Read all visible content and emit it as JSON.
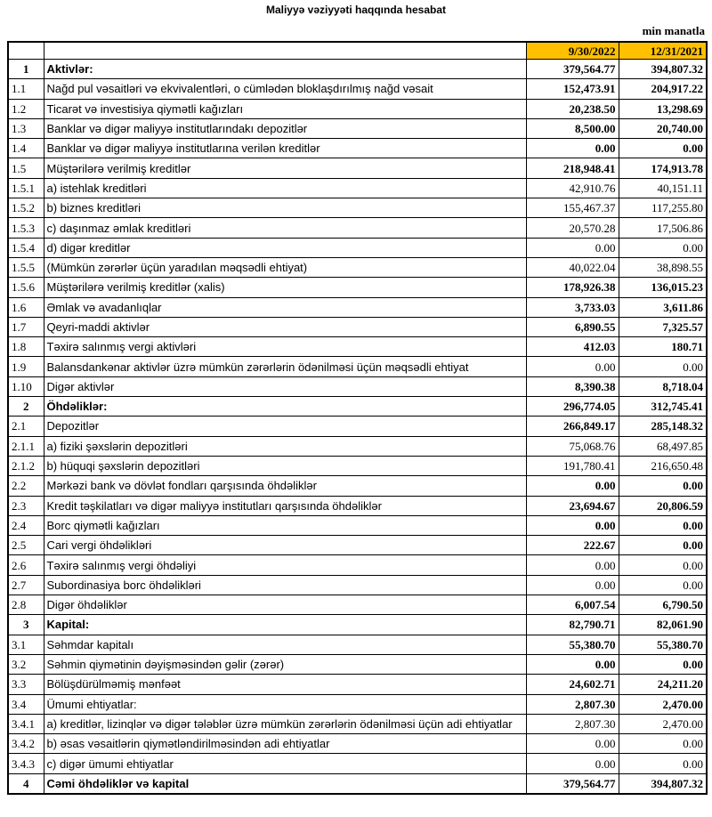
{
  "header": {
    "title": "Maliyyə vəziyyəti haqqında hesabat",
    "unit": "min manatla"
  },
  "table": {
    "columns": [
      "9/30/2022",
      "12/31/2021"
    ],
    "rows": [
      [
        "1",
        "Aktivlər:",
        "379,564.77",
        "394,807.32"
      ],
      [
        "1.1",
        "Nağd pul vəsaitləri və ekvivalentləri, o cümlədən bloklaşdırılmış nağd vəsait",
        "152,473.91",
        "204,917.22"
      ],
      [
        "1.2",
        "Ticarət və investisiya qiymətli kağızları",
        "20,238.50",
        "13,298.69"
      ],
      [
        "1.3",
        "Banklar və digər maliyyə institutlarındakı depozitlər",
        "8,500.00",
        "20,740.00"
      ],
      [
        "1.4",
        "Banklar və digər maliyyə institutlarına verilən kreditlər",
        "0.00",
        "0.00"
      ],
      [
        "1.5",
        "Müştərilərə verilmiş kreditlər",
        "218,948.41",
        "174,913.78"
      ],
      [
        "1.5.1",
        "a) istehlak kreditləri",
        "42,910.76",
        "40,151.11"
      ],
      [
        "1.5.2",
        "b) biznes kreditləri",
        "155,467.37",
        "117,255.80"
      ],
      [
        "1.5.3",
        "c) daşınmaz əmlak kreditləri",
        "20,570.28",
        "17,506.86"
      ],
      [
        "1.5.4",
        "d) digər kreditlər",
        "0.00",
        "0.00"
      ],
      [
        "1.5.5",
        "(Mümkün zərərlər üçün yaradılan məqsədli ehtiyat)",
        "40,022.04",
        "38,898.55"
      ],
      [
        "1.5.6",
        "Müştərilərə verilmiş kreditlər (xalis)",
        "178,926.38",
        "136,015.23"
      ],
      [
        "1.6",
        "Əmlak və avadanlıqlar",
        "3,733.03",
        "3,611.86"
      ],
      [
        "1.7",
        "Qeyri-maddi aktivlər",
        "6,890.55",
        "7,325.57"
      ],
      [
        "1.8",
        "Təxirə salınmış vergi aktivləri",
        "412.03",
        "180.71"
      ],
      [
        "1.9",
        "Balansdankənar aktivlər üzrə mümkün zərərlərin ödənilməsi üçün məqsədli ehtiyat",
        "0.00",
        "0.00"
      ],
      [
        "1.10",
        "Digər aktivlər",
        "8,390.38",
        "8,718.04"
      ],
      [
        "2",
        "Öhdəliklər:",
        "296,774.05",
        "312,745.41"
      ],
      [
        "2.1",
        "Depozitlər",
        "266,849.17",
        "285,148.32"
      ],
      [
        "2.1.1",
        "a) fiziki şəxslərin depozitləri",
        "75,068.76",
        "68,497.85"
      ],
      [
        "2.1.2",
        "b) hüquqi şəxslərin depozitləri",
        "191,780.41",
        "216,650.48"
      ],
      [
        "2.2",
        "Mərkəzi bank və dövlət fondları qarşısında öhdəliklər",
        "0.00",
        "0.00"
      ],
      [
        "2.3",
        "Kredit təşkilatları və digər maliyyə institutları qarşısında öhdəliklər",
        "23,694.67",
        "20,806.59"
      ],
      [
        "2.4",
        "Borc qiymətli kağızları",
        "0.00",
        "0.00"
      ],
      [
        "2.5",
        "Cari vergi öhdəlikləri",
        "222.67",
        "0.00"
      ],
      [
        "2.6",
        "Təxirə salınmış vergi öhdəliyi",
        "0.00",
        "0.00"
      ],
      [
        "2.7",
        "Subordinasiya borc öhdəlikləri",
        "0.00",
        "0.00"
      ],
      [
        "2.8",
        "Digər öhdəliklər",
        "6,007.54",
        "6,790.50"
      ],
      [
        "3",
        "Kapital:",
        "82,790.71",
        "82,061.90"
      ],
      [
        "3.1",
        "Səhmdar kapitalı",
        "55,380.70",
        "55,380.70"
      ],
      [
        "3.2",
        "Səhmin qiymətinin dəyişməsindən gəlir (zərər)",
        "0.00",
        "0.00"
      ],
      [
        "3.3",
        "Bölüşdürülməmiş mənfəət",
        "24,602.71",
        "24,211.20"
      ],
      [
        "3.4",
        "Ümumi ehtiyatlar:",
        "2,807.30",
        "2,470.00"
      ],
      [
        "3.4.1",
        "a) kreditlər, lizinqlər və digər tələblər üzrə mümkün zərərlərin ödənilməsi üçün adi ehtiyatlar",
        "2,807.30",
        "2,470.00"
      ],
      [
        "3.4.2",
        "b) əsas vəsaitlərin qiymətləndirilməsindən adi ehtiyatlar",
        "0.00",
        "0.00"
      ],
      [
        "3.4.3",
        "c) digər ümumi ehtiyatlar",
        "0.00",
        "0.00"
      ],
      [
        "4",
        "Cəmi öhdəliklər və kapital",
        "379,564.77",
        "394,807.32"
      ]
    ]
  }
}
